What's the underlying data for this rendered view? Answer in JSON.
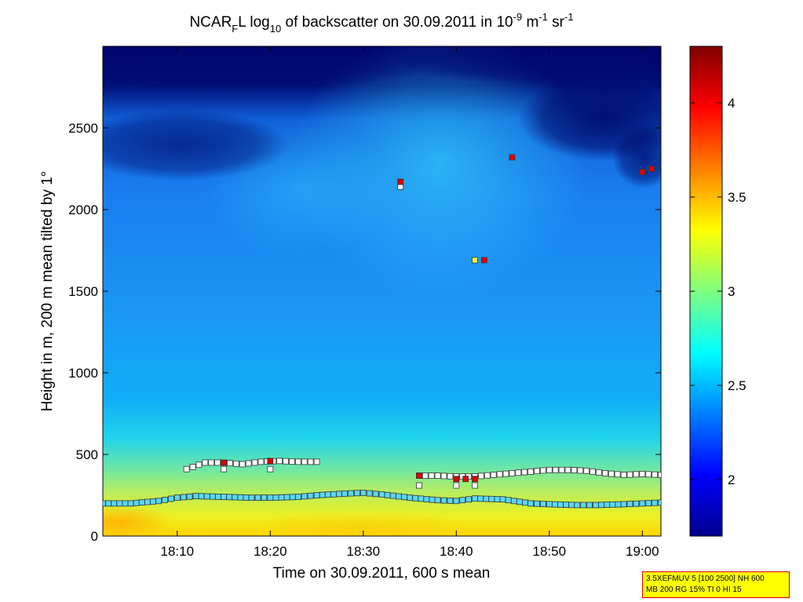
{
  "chart_data": {
    "type": "heatmap",
    "title": {
      "prefix": "NCAR",
      "sub1": "F",
      "mid1": "L log",
      "sub2": "10",
      "mid2": " of backscatter on 30.09.2011 in 10",
      "sup1": "-9",
      "mid3": " m",
      "sup2": "-1",
      "mid4": " sr",
      "sup3": "-1"
    },
    "xlabel": "Time on 30.09.2011, 600 s mean",
    "ylabel": "Height in m, 200 m mean tilted by 1°",
    "xlim": [
      "18:02",
      "19:02"
    ],
    "ylim": [
      0,
      3000
    ],
    "x_ticks": [
      "18:10",
      "18:20",
      "18:30",
      "18:40",
      "18:50",
      "19:00"
    ],
    "y_ticks": [
      "0",
      "500",
      "1000",
      "1500",
      "2000",
      "2500"
    ],
    "colorbar": {
      "range": [
        1.7,
        4.3
      ],
      "ticks": [
        "2",
        "2.5",
        "3",
        "3.5",
        "4"
      ],
      "colormap": "jet"
    },
    "series": [
      {
        "marker": "cyan-square",
        "x": [
          "18:02",
          "18:05",
          "18:08",
          "18:10",
          "18:12",
          "18:15",
          "18:18",
          "18:20",
          "18:23",
          "18:25",
          "18:28",
          "18:30",
          "18:32",
          "18:35",
          "18:38",
          "18:40",
          "18:42",
          "18:45",
          "18:48",
          "18:50",
          "18:53",
          "18:55",
          "18:58",
          "19:00",
          "19:02"
        ],
        "y": [
          200,
          200,
          215,
          235,
          245,
          240,
          235,
          235,
          240,
          250,
          260,
          265,
          255,
          235,
          220,
          215,
          230,
          225,
          200,
          195,
          190,
          190,
          195,
          200,
          205
        ]
      },
      {
        "marker": "white-square",
        "x": [
          "18:36",
          "18:38",
          "18:40",
          "18:42",
          "18:44",
          "18:46",
          "18:48",
          "18:50",
          "18:52",
          "18:54",
          "18:56",
          "18:58",
          "19:00",
          "19:02"
        ],
        "y": [
          370,
          370,
          365,
          365,
          375,
          385,
          395,
          405,
          405,
          400,
          385,
          375,
          380,
          375
        ]
      },
      {
        "marker": "white-square",
        "x": [
          "18:11",
          "18:13",
          "18:15",
          "18:17",
          "18:19",
          "18:21",
          "18:23",
          "18:25"
        ],
        "y": [
          410,
          450,
          450,
          440,
          455,
          460,
          455,
          455
        ]
      },
      {
        "marker": "white-square",
        "x": [
          "18:15",
          "18:20",
          "18:34",
          "18:36",
          "18:40",
          "18:42"
        ],
        "y": [
          410,
          410,
          2140,
          310,
          310,
          310
        ]
      },
      {
        "marker": "red-square",
        "x": [
          "18:15",
          "18:20",
          "18:34",
          "18:36",
          "18:40",
          "18:41",
          "18:42",
          "18:43",
          "18:46",
          "19:00",
          "19:01"
        ],
        "y": [
          450,
          460,
          2170,
          370,
          350,
          350,
          350,
          1690,
          2320,
          2230,
          2250
        ]
      },
      {
        "marker": "yellow-square",
        "x": [
          "18:42"
        ],
        "y": [
          1690
        ]
      }
    ]
  },
  "info_box": {
    "line1": "3.5XEFMUV 5 [100 2500] NH 600",
    "line2": "MB 200 RG 15% TI 0 HI 15"
  }
}
